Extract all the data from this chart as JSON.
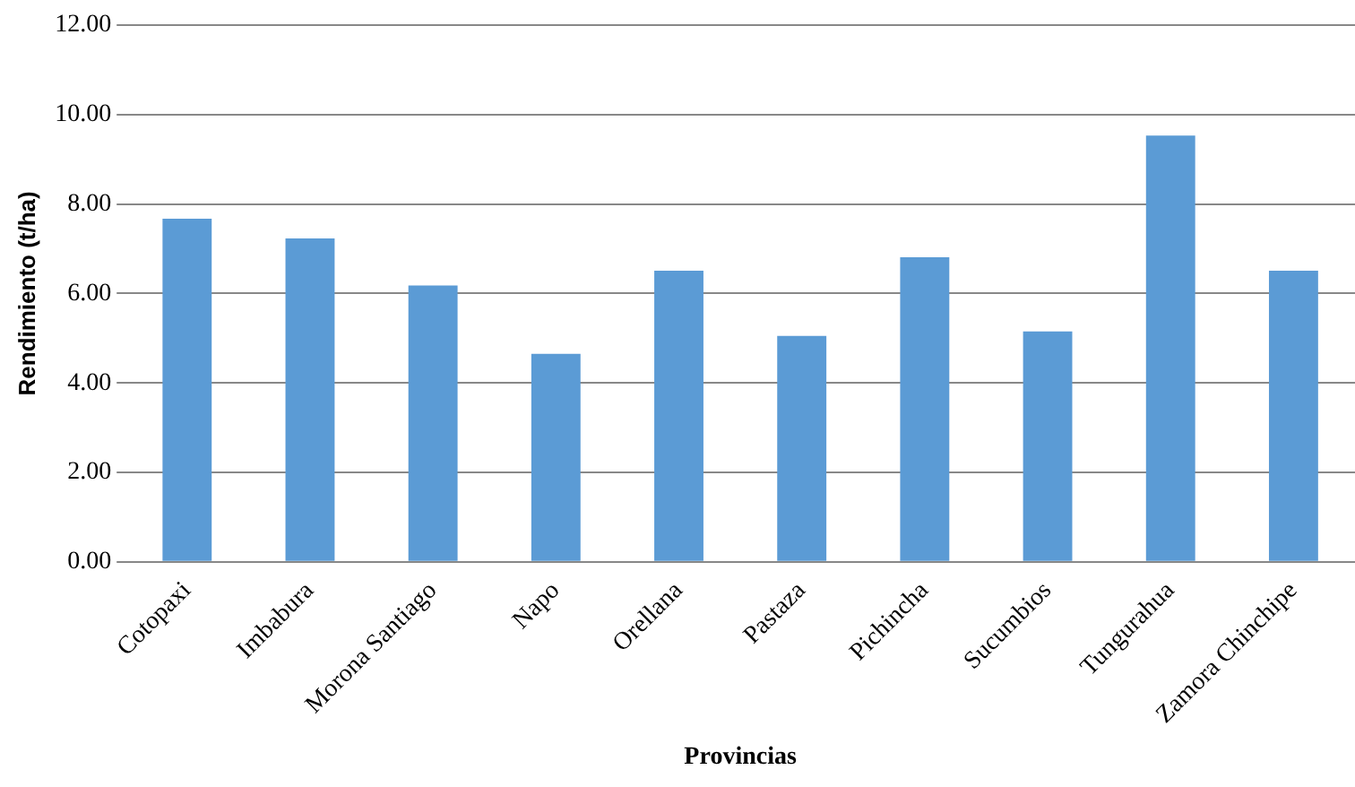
{
  "chart_data": {
    "type": "bar",
    "xlabel": "Provincias",
    "ylabel": "Rendimiento (t/ha)",
    "categories": [
      "Cotopaxi",
      "Imbabura",
      "Morona Santiago",
      "Napo",
      "Orellana",
      "Pastaza",
      "Pichincha",
      "Sucumbios",
      "Tungurahua",
      "Zamora Chinchipe"
    ],
    "values": [
      7.67,
      7.23,
      6.18,
      4.65,
      6.51,
      5.05,
      6.81,
      5.15,
      9.53,
      6.51
    ],
    "color": "#5b9bd5",
    "ylim": [
      0,
      12
    ],
    "yticks": [
      {
        "value": 0,
        "label": "0.00"
      },
      {
        "value": 2,
        "label": "2.00"
      },
      {
        "value": 4,
        "label": "4.00"
      },
      {
        "value": 6,
        "label": "6.00"
      },
      {
        "value": 8,
        "label": "8.00"
      },
      {
        "value": 10,
        "label": "10.00"
      },
      {
        "value": 12,
        "label": "12.00"
      }
    ],
    "grid": "y"
  }
}
